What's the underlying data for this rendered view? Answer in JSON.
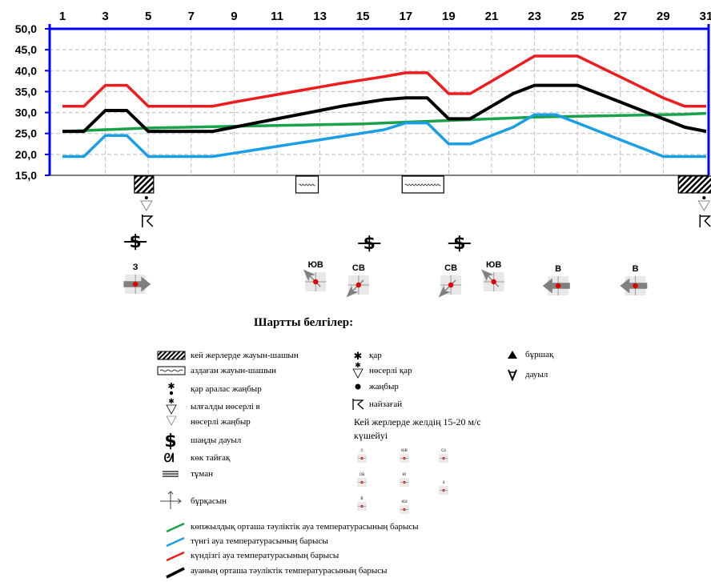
{
  "chart_data": {
    "type": "line",
    "x": [
      1,
      2,
      3,
      4,
      5,
      6,
      7,
      8,
      9,
      10,
      11,
      12,
      13,
      14,
      15,
      16,
      17,
      18,
      19,
      20,
      21,
      22,
      23,
      24,
      25,
      26,
      27,
      28,
      29,
      30,
      31
    ],
    "x_tick_labels": [
      "1",
      "3",
      "5",
      "7",
      "9",
      "11",
      "13",
      "15",
      "17",
      "19",
      "21",
      "23",
      "25",
      "27",
      "29",
      "31"
    ],
    "y_tick_labels": [
      "50,0",
      "45,0",
      "40,0",
      "35,0",
      "30,0",
      "25,0",
      "20,0",
      "15,0"
    ],
    "ylim": [
      15,
      50
    ],
    "grid": true,
    "series": [
      {
        "key": "climate",
        "color": "#1aa24b",
        "values": [
          25.5,
          25.7,
          25.9,
          26.1,
          26.3,
          26.4,
          26.5,
          26.6,
          26.7,
          26.8,
          26.9,
          27.0,
          27.1,
          27.2,
          27.3,
          27.5,
          27.7,
          27.9,
          28.1,
          28.3,
          28.5,
          28.7,
          28.9,
          29.0,
          29.1,
          29.2,
          29.3,
          29.4,
          29.5,
          29.6,
          29.8
        ]
      },
      {
        "key": "night",
        "color": "#1a9ee6",
        "values": [
          19.5,
          19.5,
          24.5,
          24.5,
          19.5,
          19.5,
          19.5,
          19.5,
          20.3,
          21.1,
          21.9,
          22.7,
          23.5,
          24.3,
          25.1,
          25.9,
          27.5,
          27.5,
          22.5,
          22.5,
          24.5,
          26.5,
          29.5,
          29.5,
          27.5,
          25.5,
          23.5,
          21.5,
          19.5,
          19.5,
          19.5
        ]
      },
      {
        "key": "day",
        "color": "#ee1c1c",
        "values": [
          31.5,
          31.5,
          36.5,
          36.5,
          31.5,
          31.5,
          31.5,
          31.5,
          32.5,
          33.4,
          34.3,
          35.2,
          36.1,
          37.0,
          37.8,
          38.6,
          39.5,
          39.5,
          34.5,
          34.5,
          37.5,
          40.5,
          43.5,
          43.5,
          43.5,
          41.0,
          38.5,
          36.0,
          33.5,
          31.5,
          31.5
        ]
      },
      {
        "key": "mean",
        "color": "#000000",
        "values": [
          25.5,
          25.5,
          30.5,
          30.5,
          25.5,
          25.5,
          25.5,
          25.5,
          26.5,
          27.5,
          28.5,
          29.5,
          30.5,
          31.5,
          32.3,
          33.1,
          33.5,
          33.5,
          28.5,
          28.5,
          31.5,
          34.5,
          36.5,
          36.5,
          36.5,
          34.5,
          32.5,
          30.5,
          28.5,
          26.5,
          25.5
        ]
      }
    ]
  },
  "precip_markers": [
    {
      "day": 4.8,
      "type": "heavy"
    },
    {
      "day": 12.4,
      "type": "light"
    },
    {
      "day": 17.8,
      "type": "light"
    },
    {
      "day": 30.6,
      "type": "heavy"
    }
  ],
  "wind_markers": [
    {
      "day": 4.4,
      "label": "З"
    },
    {
      "day": 12.8,
      "label": "ЮВ"
    },
    {
      "day": 14.8,
      "label": "СВ"
    },
    {
      "day": 19.1,
      "label": "СВ"
    },
    {
      "day": 21.1,
      "label": "ЮВ"
    },
    {
      "day": 24.1,
      "label": "В"
    },
    {
      "day": 27.7,
      "label": "В"
    }
  ],
  "legend": {
    "title": "Шартты белгілер:",
    "items": {
      "heavy_rain": "кей жерлерде жауын-шашын",
      "light_rain": "аздаған жауын-шашын",
      "sleet": "қар аралас жаңбыр",
      "shower_mixed": "ылғалды нөсерлі в",
      "shower_rain": "нөсерлі жаңбыр",
      "dust_storm": "шаңды дауыл",
      "ice": "көк тайғақ",
      "fog": "тұман",
      "whirlwind": "бұрқасын",
      "snow": "қар",
      "snow_shower": "нөсерлі қар",
      "rain": "жаңбыр",
      "thunder": "найзағай",
      "hail": "бұршақ",
      "storm": "дауыл",
      "wind_note": "Кей жерлерде желдің 15-20 м/с күшейуі"
    },
    "wind_dirs": [
      "с",
      "юв",
      "сз",
      "св",
      "ю",
      "з",
      "в",
      "юз"
    ],
    "lines": {
      "climate": "көпжылдық орташа тәуліктік ауа температурасының барысы",
      "night": "түнгі ауа температурасының барысы",
      "day": "күндізгі ауа температурасының барысы",
      "mean": "ауаның орташа тәуліктік температурасының барысы"
    }
  }
}
